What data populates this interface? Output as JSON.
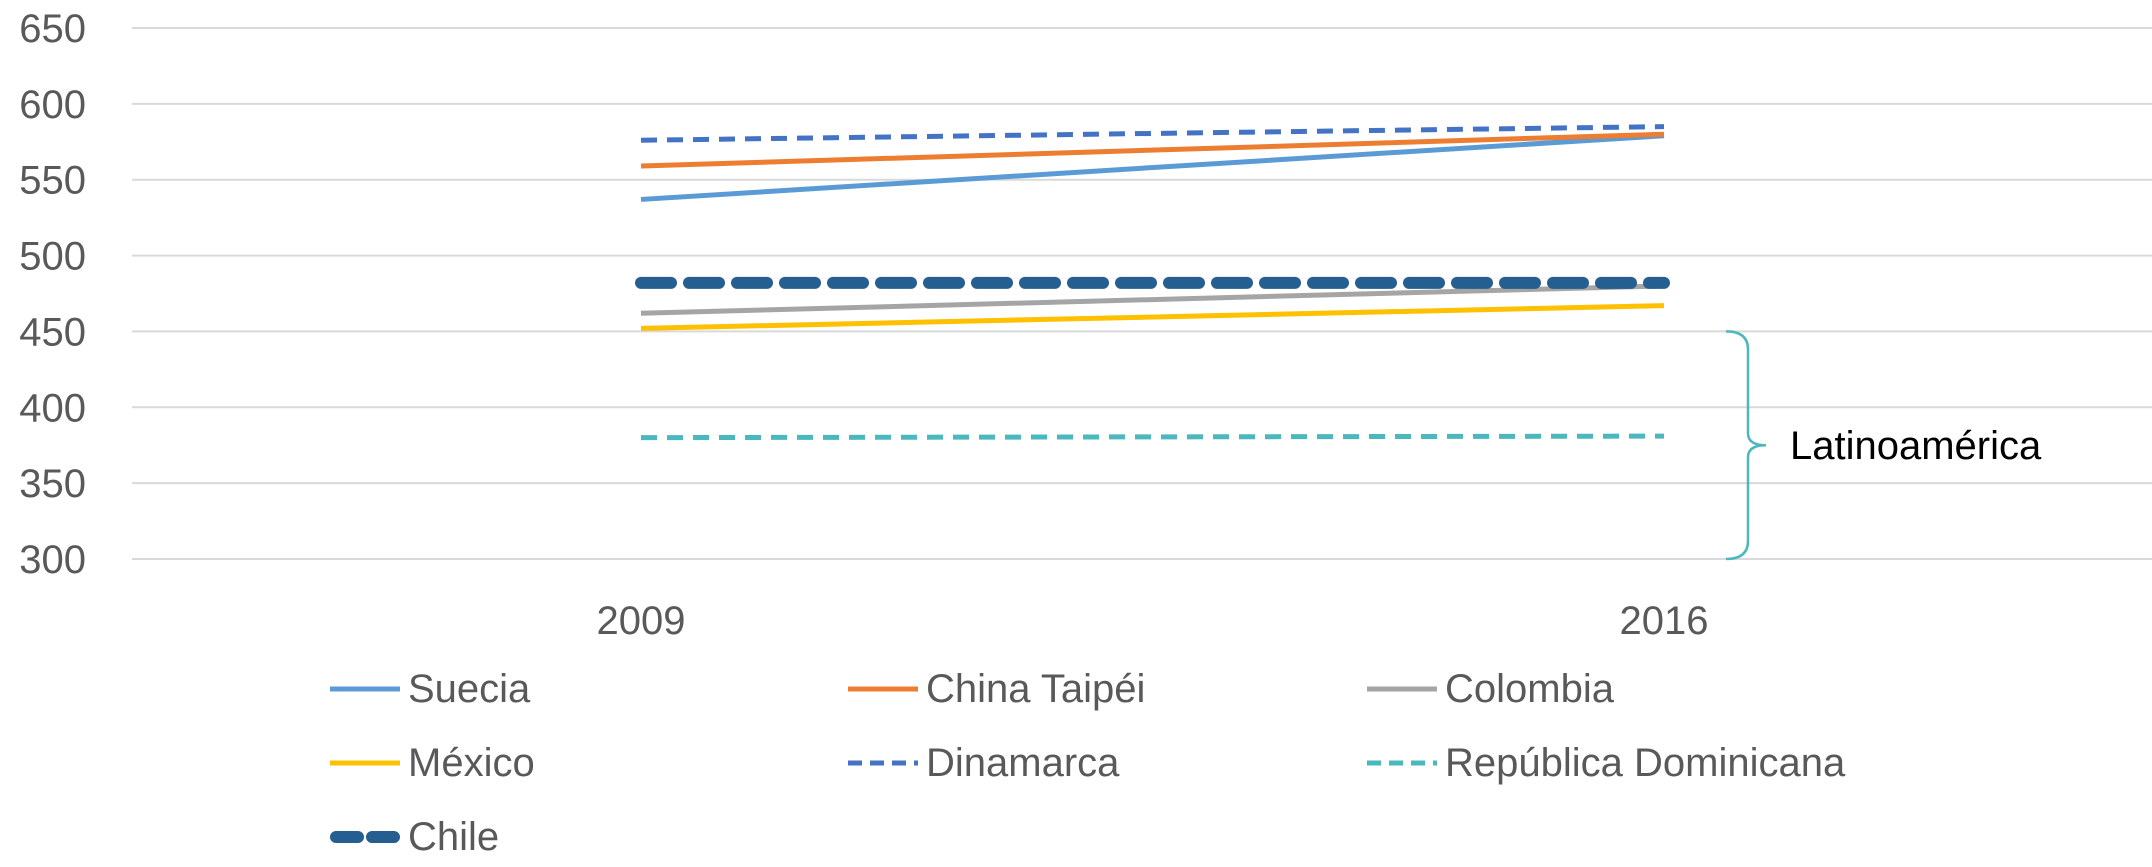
{
  "chart_data": {
    "type": "line",
    "title": "",
    "xlabel": "",
    "ylabel": "",
    "categories": [
      "2009",
      "2016"
    ],
    "ylim": [
      300,
      650
    ],
    "yticks": [
      300,
      350,
      400,
      450,
      500,
      550,
      600,
      650
    ],
    "ytick_labels": [
      "300",
      "350",
      "400",
      "450",
      "500",
      "550",
      "600",
      "650"
    ],
    "grid": true,
    "legend_position": "bottom",
    "series": [
      {
        "name": "Suecia",
        "values": [
          537,
          579
        ],
        "color": "#5B9BD5",
        "style": "solid"
      },
      {
        "name": "China Taipéi",
        "values": [
          559,
          580
        ],
        "color": "#ED7D31",
        "style": "solid"
      },
      {
        "name": "Colombia",
        "values": [
          462,
          480
        ],
        "color": "#A5A5A5",
        "style": "solid"
      },
      {
        "name": "México",
        "values": [
          452,
          467
        ],
        "color": "#FFC000",
        "style": "solid"
      },
      {
        "name": "Dinamarca",
        "values": [
          576,
          585
        ],
        "color": "#4472C4",
        "style": "dashed"
      },
      {
        "name": "República Dominicana",
        "values": [
          380,
          381
        ],
        "color": "#4BB8BE",
        "style": "dashed"
      },
      {
        "name": "Chile",
        "values": [
          482,
          482
        ],
        "color": "#255E91",
        "style": "dashed-thick"
      }
    ],
    "annotation": {
      "label": "Latinoamérica",
      "range": [
        300,
        450
      ],
      "color": "#4BB8BE"
    }
  }
}
